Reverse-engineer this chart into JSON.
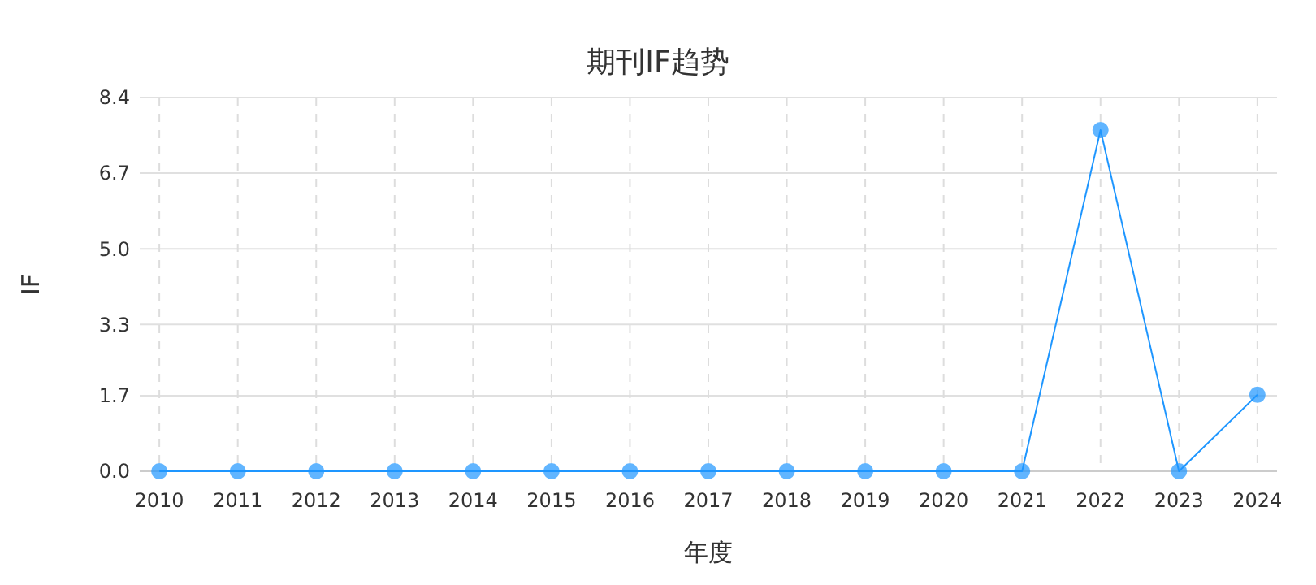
{
  "chart_data": {
    "type": "line",
    "title": "期刊IF趋势",
    "xlabel": "年度",
    "ylabel": "IF",
    "categories": [
      "2010",
      "2011",
      "2012",
      "2013",
      "2014",
      "2015",
      "2016",
      "2017",
      "2018",
      "2019",
      "2020",
      "2021",
      "2022",
      "2023",
      "2024"
    ],
    "series": [
      {
        "color": "#1e96ff",
        "values": [
          0,
          0,
          0,
          0,
          0,
          0,
          0,
          0,
          0,
          0,
          0,
          0,
          7.67,
          0,
          1.72
        ]
      }
    ],
    "ylim": [
      0,
      8.4
    ],
    "yticks": [
      {
        "value": 0,
        "label": "0.0"
      },
      1.7,
      3.3,
      {
        "value": 5,
        "label": "5.0"
      },
      6.7,
      8.4
    ],
    "grid": true,
    "marker": "circle",
    "line_style": "solid"
  }
}
